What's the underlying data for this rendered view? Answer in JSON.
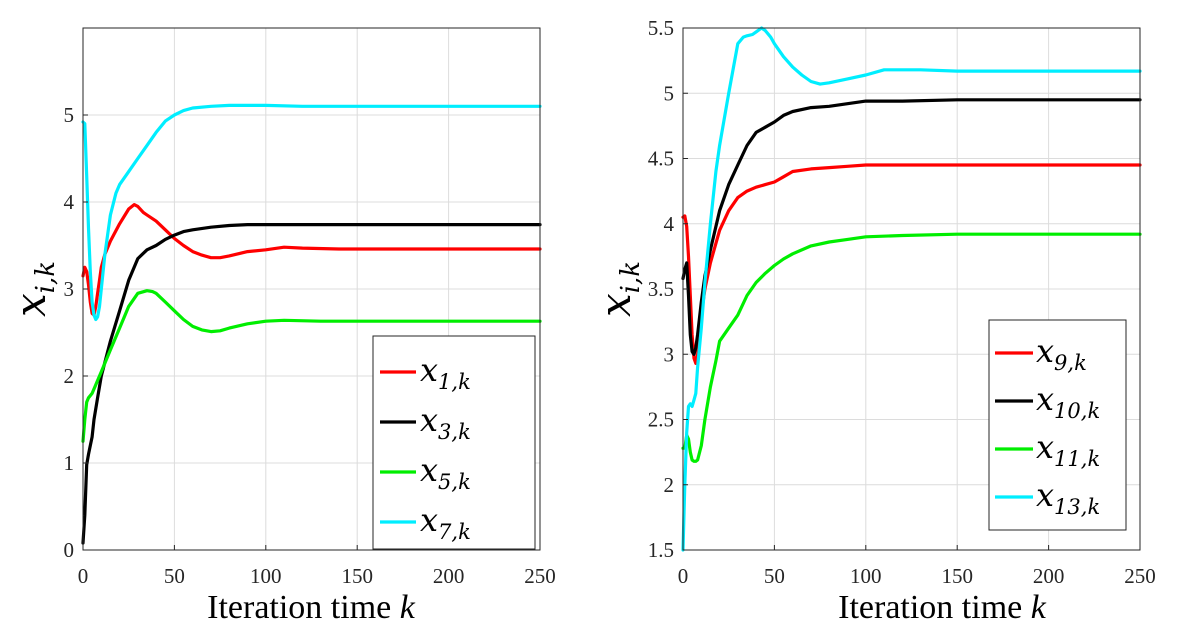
{
  "chart_data": [
    {
      "type": "line",
      "xlabel": "Iteration time",
      "xlabel_var": "k",
      "ylabel_var": "x",
      "ylabel_sub": "i,k",
      "xlim": [
        0,
        250
      ],
      "ylim": [
        0,
        6
      ],
      "xticks": [
        0,
        50,
        100,
        150,
        200,
        250
      ],
      "yticks": [
        0,
        1,
        2,
        3,
        4,
        5
      ],
      "grid": true,
      "legend_position": "bottom-right",
      "series": [
        {
          "name": "x",
          "sub": "1,k",
          "color": "#ff0000",
          "x": [
            0,
            1,
            2,
            3,
            4,
            5,
            6,
            7,
            8,
            9,
            10,
            12,
            15,
            20,
            25,
            28,
            30,
            33,
            35,
            40,
            45,
            50,
            55,
            60,
            65,
            70,
            75,
            80,
            90,
            100,
            110,
            120,
            140,
            160,
            180,
            200,
            220,
            250
          ],
          "y": [
            3.15,
            3.25,
            3.2,
            3.05,
            2.85,
            2.72,
            2.7,
            2.8,
            2.95,
            3.1,
            3.25,
            3.4,
            3.55,
            3.75,
            3.92,
            3.97,
            3.95,
            3.88,
            3.85,
            3.78,
            3.68,
            3.58,
            3.5,
            3.43,
            3.39,
            3.36,
            3.36,
            3.38,
            3.43,
            3.45,
            3.48,
            3.47,
            3.46,
            3.46,
            3.46,
            3.46,
            3.46,
            3.46
          ]
        },
        {
          "name": "x",
          "sub": "3,k",
          "color": "#000000",
          "x": [
            0,
            1,
            2,
            3,
            4,
            5,
            6,
            8,
            10,
            15,
            20,
            25,
            30,
            35,
            40,
            45,
            50,
            55,
            60,
            70,
            80,
            90,
            100,
            120,
            150,
            200,
            250
          ],
          "y": [
            0.08,
            0.4,
            0.98,
            1.1,
            1.2,
            1.3,
            1.5,
            1.75,
            2.0,
            2.4,
            2.75,
            3.1,
            3.35,
            3.45,
            3.5,
            3.57,
            3.62,
            3.66,
            3.68,
            3.71,
            3.73,
            3.74,
            3.74,
            3.74,
            3.74,
            3.74,
            3.74
          ]
        },
        {
          "name": "x",
          "sub": "5,k",
          "color": "#00ee00",
          "x": [
            0,
            1,
            2,
            3,
            5,
            7,
            10,
            15,
            20,
            25,
            30,
            35,
            38,
            40,
            45,
            50,
            55,
            60,
            65,
            70,
            75,
            80,
            90,
            100,
            110,
            130,
            150,
            200,
            250
          ],
          "y": [
            1.25,
            1.5,
            1.7,
            1.75,
            1.8,
            1.9,
            2.05,
            2.3,
            2.55,
            2.8,
            2.95,
            2.98,
            2.97,
            2.95,
            2.85,
            2.75,
            2.65,
            2.57,
            2.53,
            2.51,
            2.52,
            2.55,
            2.6,
            2.63,
            2.64,
            2.63,
            2.63,
            2.63,
            2.63
          ]
        },
        {
          "name": "x",
          "sub": "7,k",
          "color": "#00eeff",
          "x": [
            0,
            1,
            2,
            3,
            4,
            5,
            6,
            7,
            8,
            9,
            10,
            12,
            15,
            18,
            20,
            25,
            30,
            35,
            40,
            45,
            50,
            55,
            60,
            70,
            80,
            90,
            100,
            120,
            150,
            200,
            250
          ],
          "y": [
            4.92,
            4.9,
            4.3,
            3.7,
            3.2,
            2.85,
            2.7,
            2.65,
            2.68,
            2.8,
            3.0,
            3.4,
            3.85,
            4.1,
            4.2,
            4.35,
            4.5,
            4.65,
            4.8,
            4.93,
            5.0,
            5.05,
            5.08,
            5.1,
            5.11,
            5.11,
            5.11,
            5.1,
            5.1,
            5.1,
            5.1
          ]
        }
      ]
    },
    {
      "type": "line",
      "xlabel": "Iteration time",
      "xlabel_var": "k",
      "ylabel_var": "x",
      "ylabel_sub": "i,k",
      "xlim": [
        0,
        250
      ],
      "ylim": [
        1.5,
        5.5
      ],
      "xticks": [
        0,
        50,
        100,
        150,
        200,
        250
      ],
      "yticks": [
        1.5,
        2,
        2.5,
        3,
        3.5,
        4,
        4.5,
        5,
        5.5
      ],
      "grid": true,
      "legend_position": "bottom-right",
      "series": [
        {
          "name": "x",
          "sub": "9,k",
          "color": "#ff0000",
          "x": [
            0,
            1,
            2,
            3,
            4,
            5,
            6,
            7,
            8,
            9,
            10,
            12,
            15,
            20,
            25,
            30,
            35,
            40,
            45,
            50,
            55,
            60,
            70,
            80,
            90,
            100,
            120,
            150,
            200,
            250
          ],
          "y": [
            4.05,
            4.06,
            3.98,
            3.75,
            3.45,
            3.15,
            2.97,
            2.93,
            3.0,
            3.15,
            3.3,
            3.5,
            3.7,
            3.95,
            4.1,
            4.2,
            4.25,
            4.28,
            4.3,
            4.32,
            4.36,
            4.4,
            4.42,
            4.43,
            4.44,
            4.45,
            4.45,
            4.45,
            4.45,
            4.45
          ]
        },
        {
          "name": "x",
          "sub": "10,k",
          "color": "#000000",
          "x": [
            0,
            1,
            2,
            3,
            4,
            5,
            6,
            7,
            8,
            10,
            12,
            15,
            20,
            25,
            30,
            35,
            40,
            45,
            50,
            55,
            60,
            70,
            80,
            90,
            100,
            120,
            150,
            200,
            250
          ],
          "y": [
            3.58,
            3.65,
            3.7,
            3.45,
            3.15,
            3.02,
            3.0,
            3.05,
            3.15,
            3.4,
            3.6,
            3.8,
            4.1,
            4.3,
            4.45,
            4.6,
            4.7,
            4.74,
            4.78,
            4.83,
            4.86,
            4.89,
            4.9,
            4.92,
            4.94,
            4.94,
            4.95,
            4.95,
            4.95
          ]
        },
        {
          "name": "x",
          "sub": "11,k",
          "color": "#00ee00",
          "x": [
            0,
            1,
            2,
            3,
            4,
            5,
            6,
            7,
            8,
            10,
            12,
            15,
            18,
            20,
            25,
            30,
            35,
            40,
            45,
            50,
            55,
            60,
            70,
            80,
            90,
            100,
            120,
            150,
            200,
            250
          ],
          "y": [
            2.28,
            2.28,
            2.38,
            2.35,
            2.25,
            2.19,
            2.18,
            2.18,
            2.19,
            2.3,
            2.5,
            2.75,
            2.95,
            3.1,
            3.2,
            3.3,
            3.45,
            3.55,
            3.62,
            3.68,
            3.73,
            3.77,
            3.83,
            3.86,
            3.88,
            3.9,
            3.91,
            3.92,
            3.92,
            3.92
          ]
        },
        {
          "name": "x",
          "sub": "13,k",
          "color": "#00eeff",
          "x": [
            0,
            1,
            2,
            3,
            4,
            5,
            6,
            7,
            8,
            10,
            12,
            15,
            18,
            20,
            25,
            30,
            33,
            35,
            38,
            40,
            43,
            45,
            48,
            50,
            55,
            60,
            65,
            70,
            75,
            80,
            90,
            100,
            110,
            120,
            130,
            150,
            200,
            250
          ],
          "y": [
            1.5,
            2.0,
            2.4,
            2.6,
            2.62,
            2.6,
            2.65,
            2.7,
            2.9,
            3.2,
            3.55,
            4.0,
            4.4,
            4.6,
            5.0,
            5.38,
            5.43,
            5.44,
            5.45,
            5.47,
            5.5,
            5.48,
            5.43,
            5.38,
            5.28,
            5.2,
            5.14,
            5.09,
            5.07,
            5.08,
            5.11,
            5.14,
            5.18,
            5.18,
            5.18,
            5.17,
            5.17,
            5.17
          ]
        }
      ]
    }
  ]
}
